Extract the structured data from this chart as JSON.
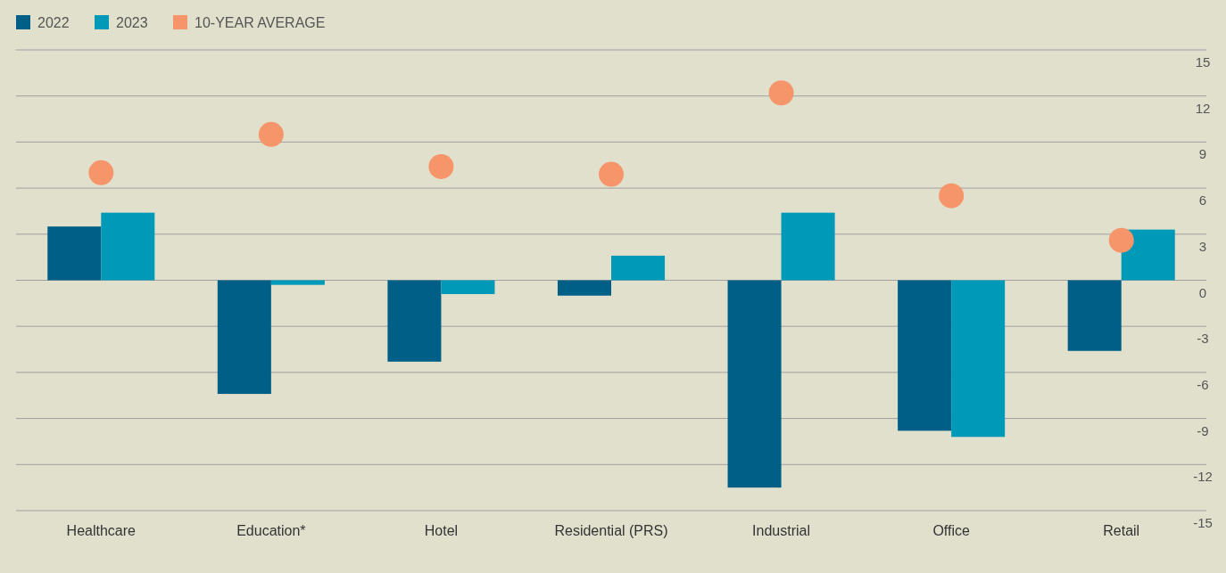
{
  "chart_data": {
    "type": "bar",
    "categories": [
      "Healthcare",
      "Education*",
      "Hotel",
      "Residential (PRS)",
      "Industrial",
      "Office",
      "Retail"
    ],
    "series": [
      {
        "name": "2022",
        "color": "#005f87",
        "values": [
          3.5,
          -7.4,
          -5.3,
          -1.0,
          -13.5,
          -9.8,
          -4.6
        ]
      },
      {
        "name": "2023",
        "color": "#009ab8",
        "values": [
          4.4,
          -0.3,
          -0.9,
          1.6,
          4.4,
          -10.2,
          3.3
        ]
      },
      {
        "name": "10-YEAR AVERAGE",
        "type": "scatter",
        "color": "#f7956a",
        "x": [
          "Healthcare",
          "Education*",
          "Hotel",
          "Residential (PRS)",
          "Industrial",
          "Office",
          "Retail"
        ],
        "values": [
          7.0,
          9.5,
          7.4,
          6.9,
          12.2,
          5.5,
          2.6
        ]
      }
    ],
    "ylim": [
      -15,
      15
    ],
    "yticks": [
      -15,
      -12,
      -9,
      -6,
      -3,
      0,
      3,
      6,
      9,
      12,
      15
    ],
    "grid": "y",
    "legend": "top left",
    "marker": "circle"
  }
}
